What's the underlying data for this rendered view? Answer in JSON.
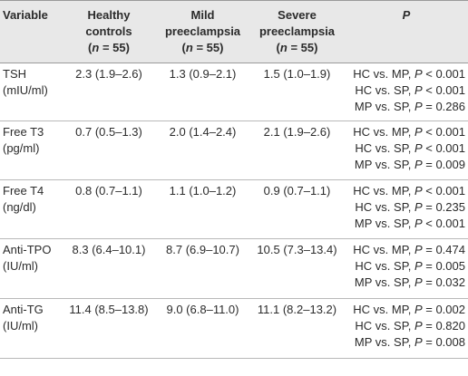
{
  "table": {
    "headers": [
      {
        "lines": [
          "Variable"
        ]
      },
      {
        "lines": [
          "Healthy",
          "controls"
        ],
        "n_label": "n",
        "n_value": "55"
      },
      {
        "lines": [
          "Mild",
          "preeclampsia"
        ],
        "n_label": "n",
        "n_value": "55"
      },
      {
        "lines": [
          "Severe",
          "preeclampsia"
        ],
        "n_label": "n",
        "n_value": "55"
      },
      {
        "lines": [
          "P"
        ]
      }
    ],
    "rows": [
      {
        "variable": [
          "TSH",
          "(mIU/ml)"
        ],
        "healthy": "2.3 (1.9–2.6)",
        "mild": "1.3 (0.9–2.1)",
        "severe": "1.5 (1.0–1.9)",
        "p": [
          {
            "comparison": "HC vs. MP",
            "op": "<",
            "value": "0.001"
          },
          {
            "comparison": "HC vs. SP",
            "op": "<",
            "value": "0.001"
          },
          {
            "comparison": "MP vs. SP",
            "op": "=",
            "value": "0.286"
          }
        ]
      },
      {
        "variable": [
          "Free T3",
          "(pg/ml)"
        ],
        "healthy": "0.7 (0.5–1.3)",
        "mild": "2.0 (1.4–2.4)",
        "severe": "2.1 (1.9–2.6)",
        "p": [
          {
            "comparison": "HC vs. MP",
            "op": "<",
            "value": "0.001"
          },
          {
            "comparison": "HC vs. SP",
            "op": "<",
            "value": "0.001"
          },
          {
            "comparison": "MP vs. SP",
            "op": "=",
            "value": "0.009"
          }
        ]
      },
      {
        "variable": [
          "Free T4",
          "(ng/dl)"
        ],
        "healthy": "0.8 (0.7–1.1)",
        "mild": "1.1 (1.0–1.2)",
        "severe": "0.9 (0.7–1.1)",
        "p": [
          {
            "comparison": "HC vs. MP",
            "op": "<",
            "value": "0.001"
          },
          {
            "comparison": "HC vs. SP",
            "op": "=",
            "value": "0.235"
          },
          {
            "comparison": "MP vs. SP",
            "op": "<",
            "value": "0.001"
          }
        ]
      },
      {
        "variable": [
          "Anti-TPO",
          "(IU/ml)"
        ],
        "healthy": "8.3 (6.4–10.1)",
        "mild": "8.7 (6.9–10.7)",
        "severe": "10.5 (7.3–13.4)",
        "p": [
          {
            "comparison": "HC vs. MP",
            "op": "=",
            "value": "0.474"
          },
          {
            "comparison": "HC vs. SP",
            "op": "=",
            "value": "0.005"
          },
          {
            "comparison": "MP vs. SP",
            "op": "=",
            "value": "0.032"
          }
        ]
      },
      {
        "variable": [
          "Anti-TG",
          "(IU/ml)"
        ],
        "healthy": "11.4 (8.5–13.8)",
        "mild": "9.0 (6.8–11.0)",
        "severe": "11.1 (8.2–13.2)",
        "p": [
          {
            "comparison": "HC vs. MP",
            "op": "=",
            "value": "0.002"
          },
          {
            "comparison": "HC vs. SP",
            "op": "=",
            "value": "0.820"
          },
          {
            "comparison": "MP vs. SP",
            "op": "=",
            "value": "0.008"
          }
        ]
      }
    ]
  }
}
